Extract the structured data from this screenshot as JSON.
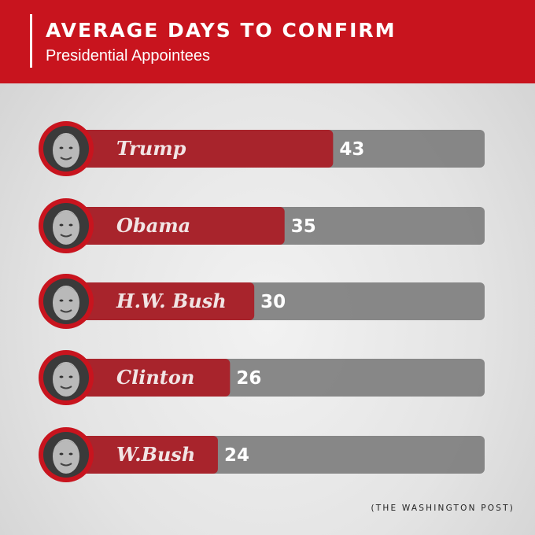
{
  "header": {
    "title": "AVERAGE DAYS TO CONFIRM",
    "subtitle": "Presidential Appointees"
  },
  "source": "(THE WASHINGTON POST)",
  "colors": {
    "header_red": "#c8141e",
    "bar_red": "#a8242c",
    "bar_track": "#7c7c7c",
    "portrait_ring": "#c8141e"
  },
  "chart_data": {
    "type": "bar",
    "orientation": "horizontal",
    "title": "AVERAGE DAYS TO CONFIRM",
    "subtitle": "Presidential Appointees",
    "categories": [
      "Trump",
      "Obama",
      "H.W. Bush",
      "Clinton",
      "W.Bush"
    ],
    "values": [
      43,
      35,
      30,
      26,
      24
    ],
    "xlim": [
      0,
      68
    ],
    "grid": false,
    "legend": "none",
    "data_labels": true,
    "portrait_icons": [
      "trump-portrait-icon",
      "obama-portrait-icon",
      "hw-bush-portrait-icon",
      "clinton-portrait-icon",
      "w-bush-portrait-icon"
    ]
  }
}
